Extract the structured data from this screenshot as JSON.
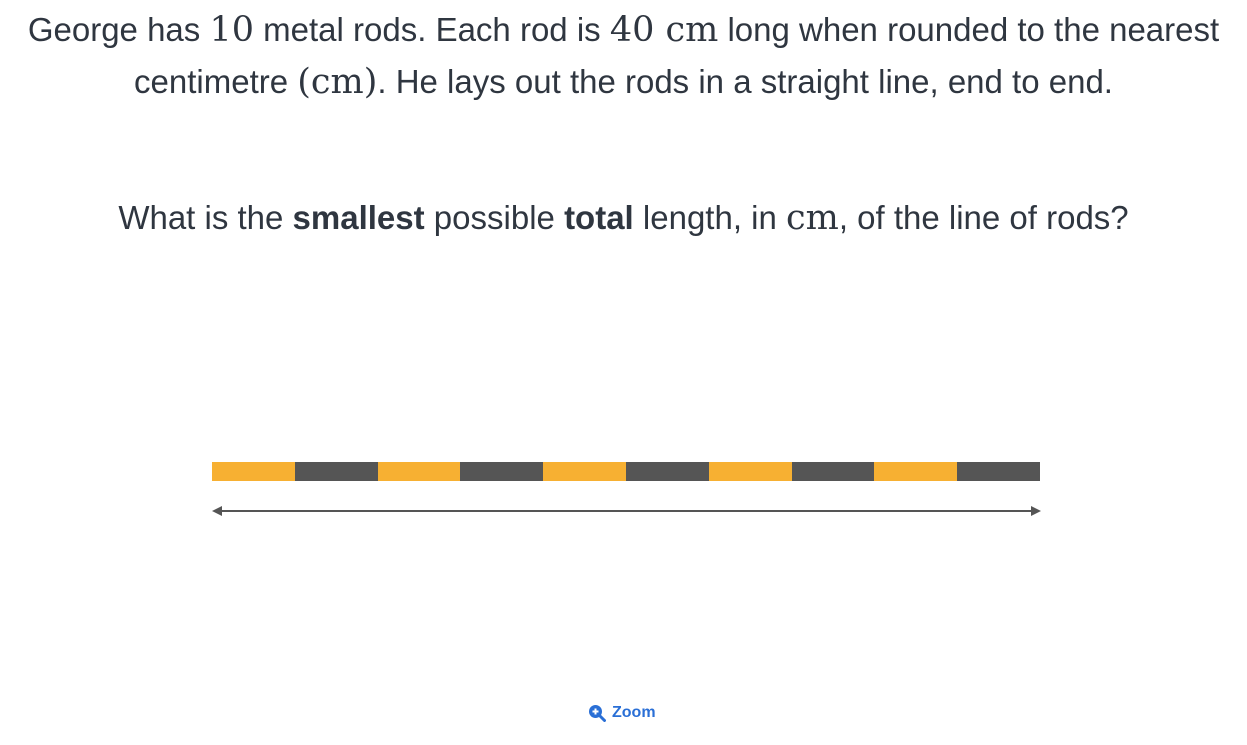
{
  "question": {
    "part1": "George has ",
    "num_rods": "10",
    "part2": " metal rods. Each rod is ",
    "rod_length": "40",
    "unit1": " cm",
    "part3": " long when rounded to the nearest centimetre ",
    "unit_paren": "(cm)",
    "part4": ". He lays out the rods in a straight line, end to end."
  },
  "prompt": {
    "part1": "What is the ",
    "bold1": "smallest",
    "part2": " possible ",
    "bold2": "total",
    "part3": " length, in ",
    "unit": "cm",
    "part4": ", of the line of rods?"
  },
  "diagram": {
    "rod_count": 10,
    "colors": [
      "#f7b032",
      "#555555"
    ],
    "arrow_color": "#555555"
  },
  "zoom": {
    "label": "Zoom",
    "icon": "zoom-in-icon",
    "color": "#2a6fd6"
  }
}
